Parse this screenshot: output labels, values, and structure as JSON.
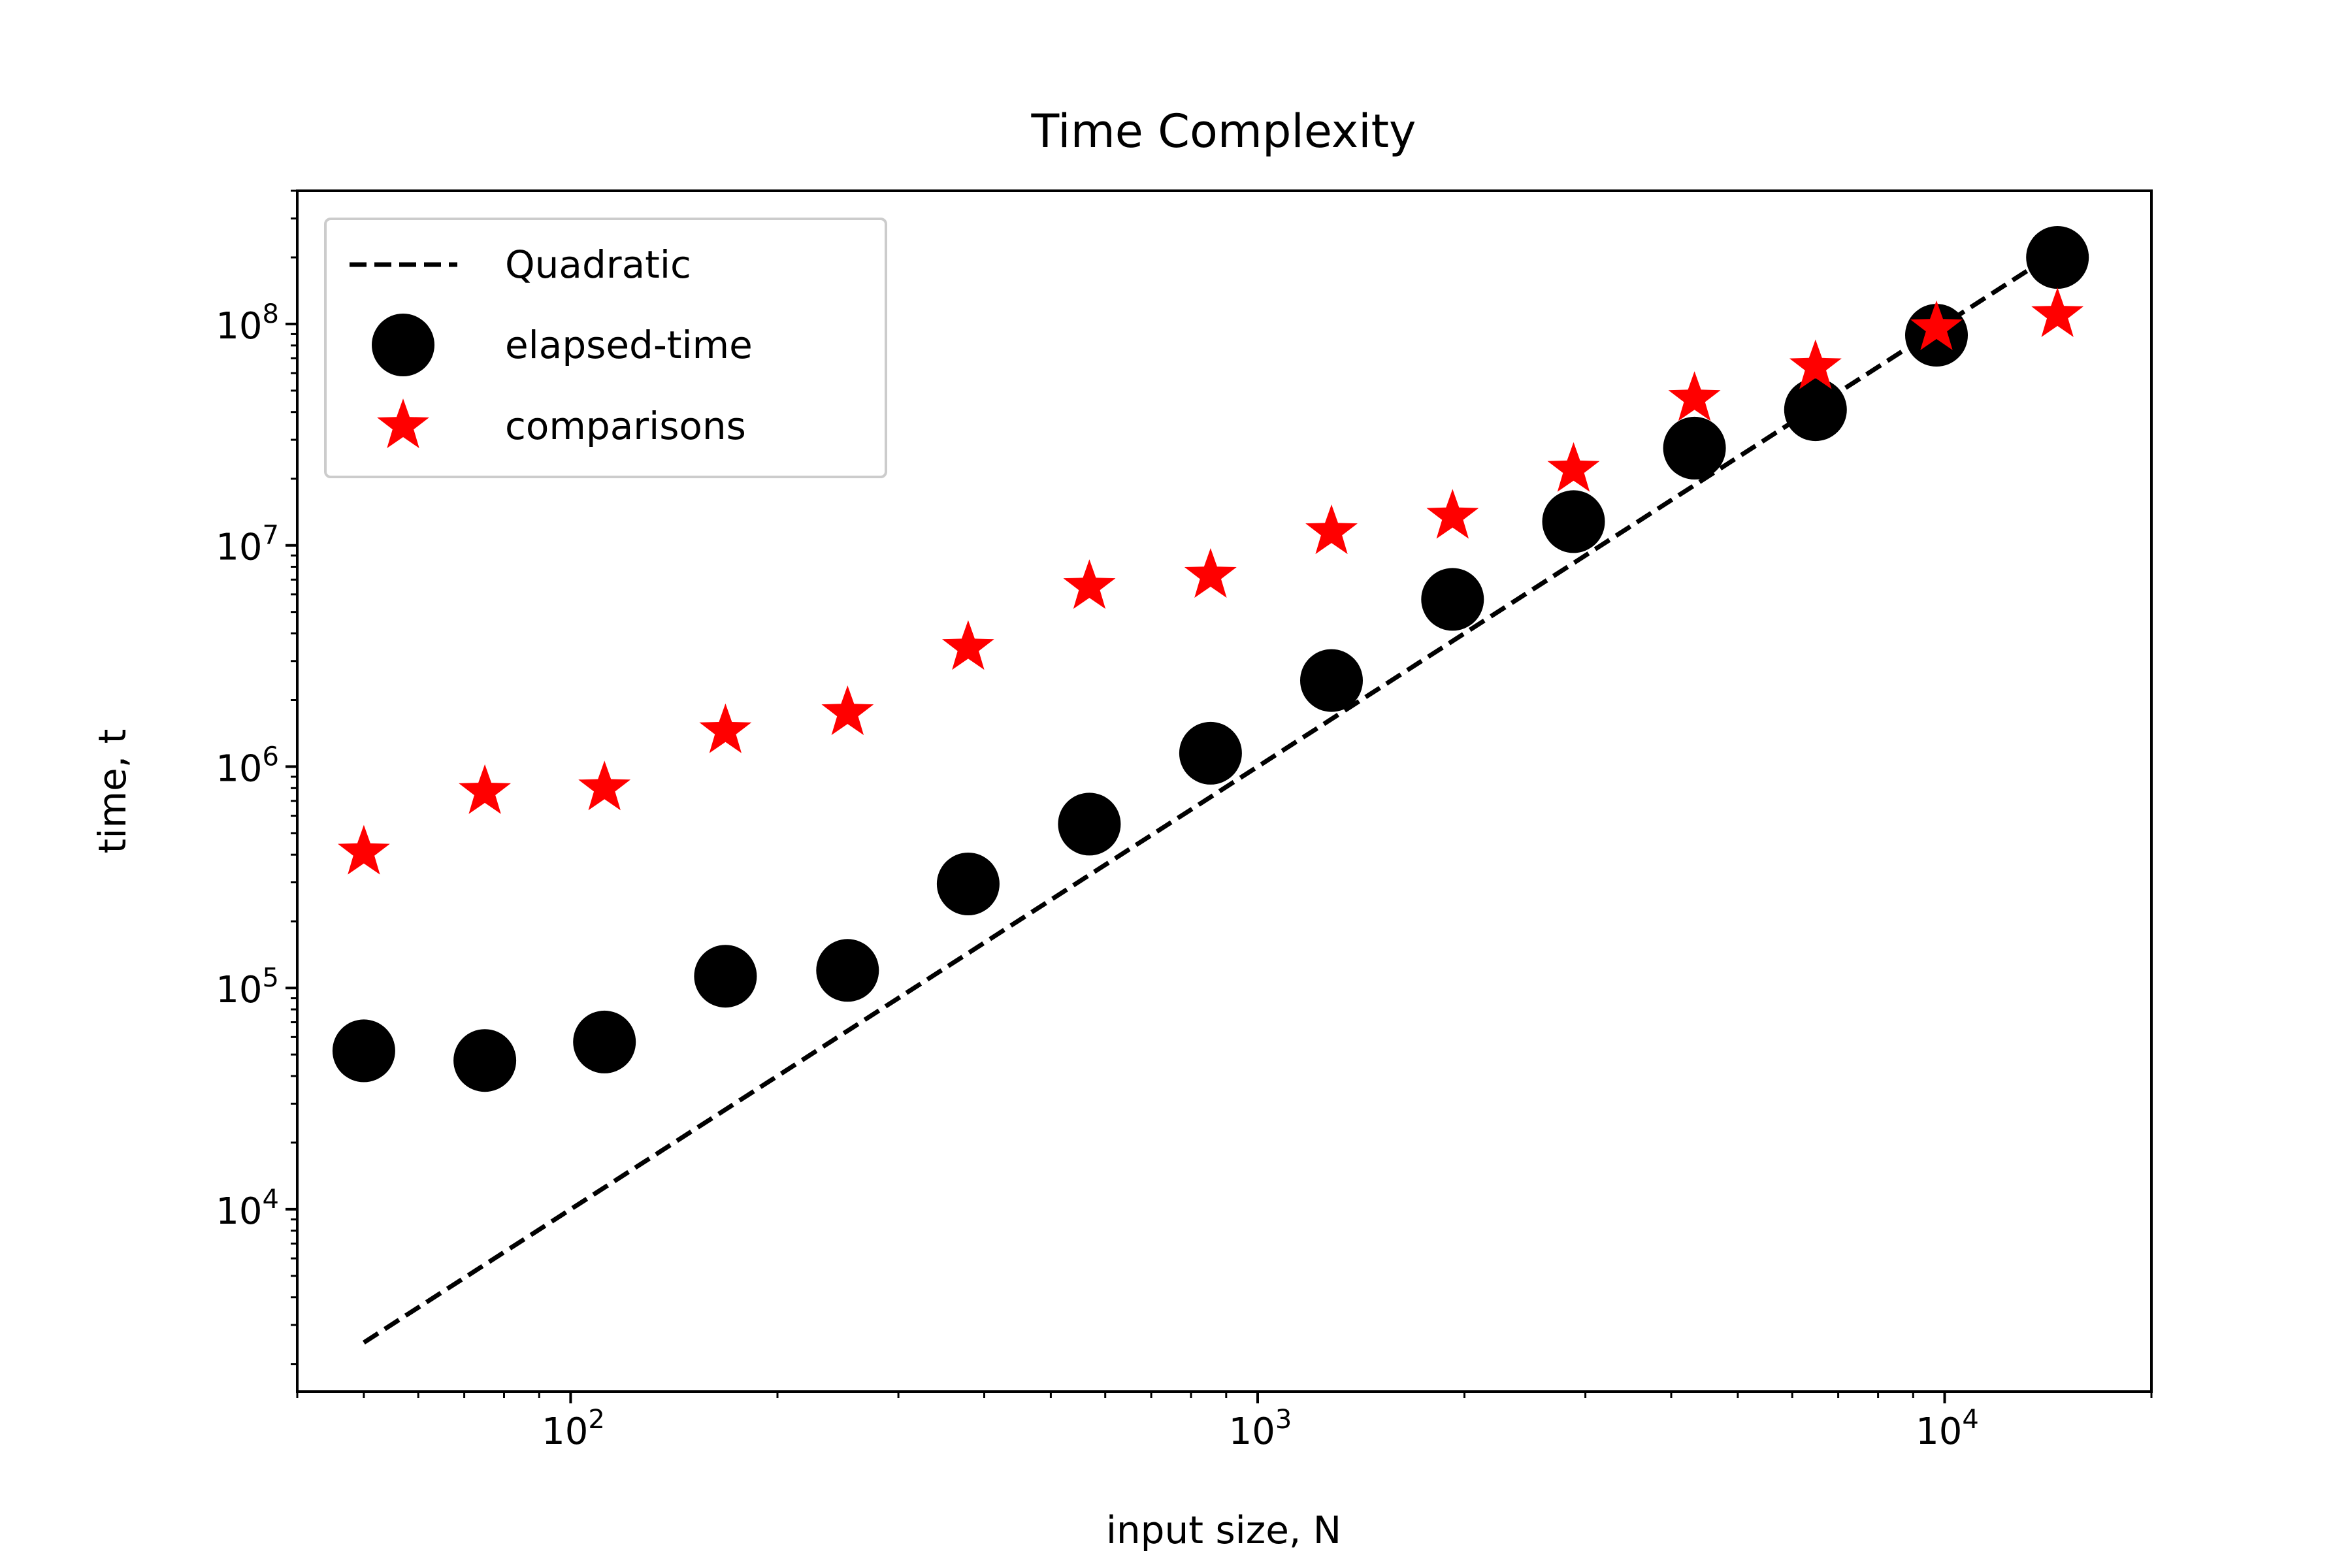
{
  "chart_data": {
    "type": "scatter",
    "title": "Time Complexity",
    "xlabel": "input size, N",
    "ylabel": "time, t",
    "xscale": "log",
    "yscale": "log",
    "xlim": [
      40,
      20000
    ],
    "ylim": [
      1500,
      400000000
    ],
    "grid": false,
    "legend_position": "top-left",
    "x_ticks": [
      {
        "value": 100,
        "base": "10",
        "exp": "2"
      },
      {
        "value": 1000,
        "base": "10",
        "exp": "3"
      },
      {
        "value": 10000,
        "base": "10",
        "exp": "4"
      }
    ],
    "y_ticks": [
      {
        "value": 10000,
        "base": "10",
        "exp": "4"
      },
      {
        "value": 100000,
        "base": "10",
        "exp": "5"
      },
      {
        "value": 1000000,
        "base": "10",
        "exp": "6"
      },
      {
        "value": 10000000,
        "base": "10",
        "exp": "7"
      },
      {
        "value": 100000000,
        "base": "10",
        "exp": "8"
      }
    ],
    "x": [
      50,
      75,
      112,
      168,
      253,
      379,
      569,
      854,
      1281,
      1922,
      2883,
      4324,
      6487,
      9730,
      14596
    ],
    "series": [
      {
        "name": "Quadratic",
        "style": "dashed-line",
        "color": "#000000",
        "values": [
          2500,
          5625,
          12544,
          28224,
          64009,
          143641,
          323761,
          729316,
          1640961,
          3694084,
          8311689,
          18696976,
          42081169,
          94672900,
          213043216
        ]
      },
      {
        "name": "elapsed-time",
        "style": "circle-marker",
        "color": "#000000",
        "values": [
          52000,
          47000,
          57000,
          113000,
          120000,
          295000,
          550000,
          1150000,
          2450000,
          5700000,
          12800000,
          27500000,
          41000000,
          89000000,
          200000000
        ]
      },
      {
        "name": "comparisons",
        "style": "star-marker",
        "color": "#ff0000",
        "values": [
          410000,
          770000,
          800000,
          1450000,
          1750000,
          3450000,
          6500000,
          7300000,
          11500000,
          13500000,
          22000000,
          46000000,
          64000000,
          96000000,
          110000000
        ]
      }
    ]
  }
}
